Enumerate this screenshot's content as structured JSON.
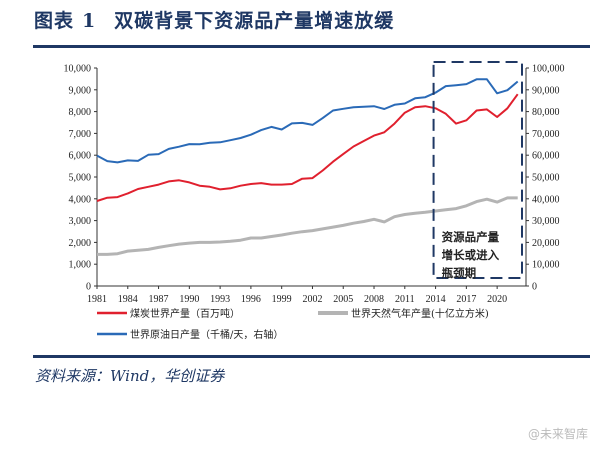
{
  "header": {
    "figure_label": "图表",
    "figure_number": "1",
    "title": "双碳背景下资源品产量增速放缓"
  },
  "source": "资料来源：Wind，华创证券",
  "watermark": "@未来智库",
  "chart_data": {
    "type": "line",
    "x": [
      1981,
      1982,
      1983,
      1984,
      1985,
      1986,
      1987,
      1988,
      1989,
      1990,
      1991,
      1992,
      1993,
      1994,
      1995,
      1996,
      1997,
      1998,
      1999,
      2000,
      2001,
      2002,
      2003,
      2004,
      2005,
      2006,
      2007,
      2008,
      2009,
      2010,
      2011,
      2012,
      2013,
      2014,
      2015,
      2016,
      2017,
      2018,
      2019,
      2020,
      2021,
      2022
    ],
    "x_ticks": [
      "1981",
      "1984",
      "1987",
      "1990",
      "1993",
      "1996",
      "1999",
      "2002",
      "2005",
      "2008",
      "2011",
      "2014",
      "2017",
      "2020"
    ],
    "ylim_left": [
      0,
      10000
    ],
    "ylim_right": [
      0,
      100000
    ],
    "y_ticks_left": [
      "0",
      "1,000",
      "2,000",
      "3,000",
      "4,000",
      "5,000",
      "6,000",
      "7,000",
      "8,000",
      "9,000",
      "10,000"
    ],
    "y_ticks_right": [
      "0",
      "10,000",
      "20,000",
      "30,000",
      "40,000",
      "50,000",
      "60,000",
      "70,000",
      "80,000",
      "90,000",
      "100,000"
    ],
    "grid": false,
    "legend_placement": "bottom",
    "series": [
      {
        "name": "煤炭世界产量（百万吨）",
        "axis": "left",
        "color": "#e0202e",
        "values": [
          3900,
          4050,
          4080,
          4250,
          4450,
          4550,
          4650,
          4800,
          4850,
          4750,
          4600,
          4550,
          4430,
          4480,
          4600,
          4680,
          4720,
          4650,
          4650,
          4680,
          4920,
          4950,
          5300,
          5700,
          6050,
          6400,
          6650,
          6900,
          7050,
          7450,
          7950,
          8200,
          8250,
          8150,
          7900,
          7450,
          7600,
          8050,
          8100,
          7750,
          8150,
          8800
        ]
      },
      {
        "name": "世界天然气年产量(十亿立方米)",
        "axis": "left",
        "color": "#b4b4b4",
        "values": [
          1450,
          1450,
          1480,
          1600,
          1640,
          1680,
          1770,
          1850,
          1920,
          1970,
          2000,
          2000,
          2020,
          2050,
          2100,
          2200,
          2200,
          2270,
          2340,
          2420,
          2490,
          2540,
          2620,
          2700,
          2780,
          2880,
          2960,
          3060,
          2940,
          3180,
          3280,
          3340,
          3380,
          3440,
          3500,
          3550,
          3680,
          3870,
          3980,
          3850,
          4040,
          4040
        ]
      },
      {
        "name": "世界原油日产量（千桶/天，右轴）",
        "axis": "right",
        "color": "#2a6ab7",
        "values": [
          59800,
          57300,
          56700,
          57600,
          57400,
          60200,
          60500,
          62900,
          63900,
          65100,
          65000,
          65700,
          65900,
          66900,
          67900,
          69400,
          71500,
          73000,
          71800,
          74600,
          74800,
          73900,
          77000,
          80500,
          81300,
          82000,
          82200,
          82500,
          81200,
          83100,
          83700,
          86100,
          86600,
          88700,
          91700,
          92100,
          92600,
          94800,
          94800,
          88400,
          89800,
          93800
        ]
      }
    ],
    "annotation": {
      "lines": [
        "资源品产量",
        "增长或进入",
        "瓶颈期"
      ],
      "range": [
        2014,
        2022
      ]
    }
  }
}
